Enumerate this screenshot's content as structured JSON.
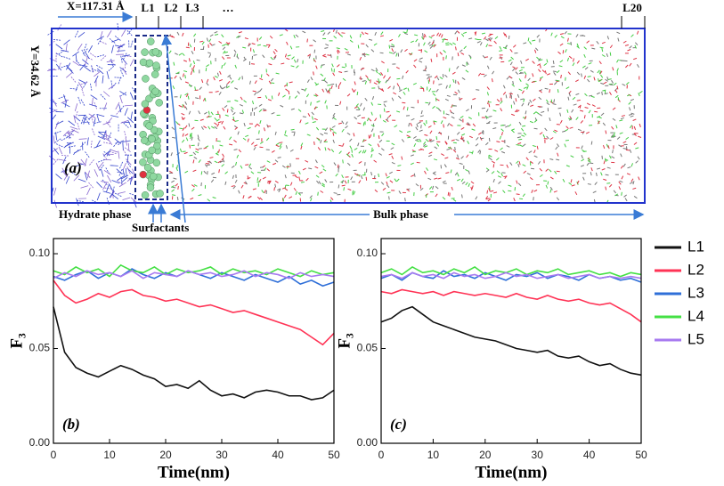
{
  "diagram": {
    "x_size": "X=117.31 Å",
    "y_size": "Y=34.62 Å",
    "layers": [
      "L1",
      "L2",
      "L3",
      "…",
      "L20"
    ],
    "panel": "(a)",
    "hydrate": "Hydrate phase",
    "surfactants": "Surfactants",
    "bulk": "Bulk phase"
  },
  "legend": [
    {
      "name": "L1",
      "color": "#111111"
    },
    {
      "name": "L2",
      "color": "#ff3355"
    },
    {
      "name": "L3",
      "color": "#2f6fd8"
    },
    {
      "name": "L4",
      "color": "#44e044"
    },
    {
      "name": "L5",
      "color": "#a77af0"
    }
  ],
  "chart_data": [
    {
      "type": "line",
      "annotation": "(b)",
      "xlabel": "Time(nm)",
      "ylabel": "F₃",
      "x": [
        0,
        2,
        4,
        6,
        8,
        10,
        12,
        14,
        16,
        18,
        20,
        22,
        24,
        26,
        28,
        30,
        32,
        34,
        36,
        38,
        40,
        42,
        44,
        46,
        48,
        50
      ],
      "series": [
        {
          "values": [
            0.072,
            0.048,
            0.04,
            0.037,
            0.035,
            0.038,
            0.041,
            0.039,
            0.036,
            0.034,
            0.03,
            0.031,
            0.029,
            0.033,
            0.028,
            0.025,
            0.026,
            0.024,
            0.027,
            0.028,
            0.027,
            0.025,
            0.025,
            0.023,
            0.024,
            0.028
          ]
        },
        {
          "values": [
            0.086,
            0.078,
            0.074,
            0.076,
            0.079,
            0.077,
            0.08,
            0.081,
            0.078,
            0.077,
            0.075,
            0.076,
            0.074,
            0.072,
            0.073,
            0.071,
            0.069,
            0.07,
            0.068,
            0.066,
            0.064,
            0.062,
            0.06,
            0.056,
            0.052,
            0.058
          ]
        },
        {
          "values": [
            0.088,
            0.086,
            0.089,
            0.091,
            0.087,
            0.09,
            0.088,
            0.092,
            0.089,
            0.087,
            0.09,
            0.088,
            0.091,
            0.089,
            0.087,
            0.09,
            0.088,
            0.086,
            0.089,
            0.087,
            0.085,
            0.088,
            0.084,
            0.086,
            0.083,
            0.085
          ]
        },
        {
          "values": [
            0.091,
            0.089,
            0.093,
            0.09,
            0.092,
            0.088,
            0.094,
            0.091,
            0.09,
            0.093,
            0.089,
            0.092,
            0.09,
            0.091,
            0.093,
            0.089,
            0.092,
            0.09,
            0.091,
            0.089,
            0.092,
            0.09,
            0.088,
            0.091,
            0.089,
            0.09
          ]
        },
        {
          "values": [
            0.087,
            0.09,
            0.088,
            0.091,
            0.089,
            0.09,
            0.088,
            0.091,
            0.087,
            0.09,
            0.089,
            0.088,
            0.091,
            0.089,
            0.09,
            0.088,
            0.089,
            0.091,
            0.088,
            0.09,
            0.089,
            0.087,
            0.09,
            0.088,
            0.089,
            0.088
          ]
        }
      ],
      "xlim": [
        0,
        50
      ],
      "ylim": [
        0,
        0.108
      ],
      "xticks": [
        0,
        10,
        20,
        30,
        40,
        50
      ],
      "yticks": [
        {
          "value": 0,
          "label": "0.00"
        },
        0.05,
        {
          "value": 0.1,
          "label": "0.10"
        }
      ]
    },
    {
      "type": "line",
      "annotation": "(c)",
      "xlabel": "Time(nm)",
      "ylabel": "F₃",
      "x": [
        0,
        2,
        4,
        6,
        8,
        10,
        12,
        14,
        16,
        18,
        20,
        22,
        24,
        26,
        28,
        30,
        32,
        34,
        36,
        38,
        40,
        42,
        44,
        46,
        48,
        50
      ],
      "series": [
        {
          "values": [
            0.064,
            0.066,
            0.07,
            0.072,
            0.068,
            0.064,
            0.062,
            0.06,
            0.058,
            0.056,
            0.055,
            0.054,
            0.052,
            0.05,
            0.049,
            0.048,
            0.049,
            0.046,
            0.045,
            0.046,
            0.043,
            0.041,
            0.042,
            0.039,
            0.037,
            0.036
          ]
        },
        {
          "values": [
            0.08,
            0.079,
            0.081,
            0.08,
            0.079,
            0.08,
            0.078,
            0.08,
            0.079,
            0.078,
            0.079,
            0.078,
            0.077,
            0.079,
            0.077,
            0.076,
            0.078,
            0.076,
            0.075,
            0.076,
            0.074,
            0.073,
            0.074,
            0.071,
            0.068,
            0.064
          ]
        },
        {
          "values": [
            0.087,
            0.089,
            0.086,
            0.09,
            0.088,
            0.087,
            0.091,
            0.088,
            0.089,
            0.087,
            0.09,
            0.088,
            0.086,
            0.089,
            0.088,
            0.09,
            0.087,
            0.089,
            0.088,
            0.086,
            0.089,
            0.087,
            0.088,
            0.086,
            0.087,
            0.085
          ]
        },
        {
          "values": [
            0.09,
            0.092,
            0.089,
            0.093,
            0.09,
            0.091,
            0.089,
            0.092,
            0.09,
            0.093,
            0.089,
            0.091,
            0.09,
            0.092,
            0.089,
            0.091,
            0.09,
            0.092,
            0.089,
            0.09,
            0.091,
            0.089,
            0.09,
            0.088,
            0.09,
            0.089
          ]
        },
        {
          "values": [
            0.088,
            0.089,
            0.087,
            0.09,
            0.088,
            0.089,
            0.087,
            0.09,
            0.088,
            0.089,
            0.087,
            0.088,
            0.09,
            0.088,
            0.089,
            0.087,
            0.088,
            0.089,
            0.087,
            0.088,
            0.089,
            0.087,
            0.088,
            0.087,
            0.088,
            0.087
          ]
        }
      ],
      "xlim": [
        0,
        50
      ],
      "ylim": [
        0,
        0.108
      ],
      "xticks": [
        0,
        10,
        20,
        30,
        40,
        50
      ],
      "yticks": [
        {
          "value": 0,
          "label": "0.00"
        },
        0.05,
        {
          "value": 0.1,
          "label": "0.10"
        }
      ]
    }
  ]
}
